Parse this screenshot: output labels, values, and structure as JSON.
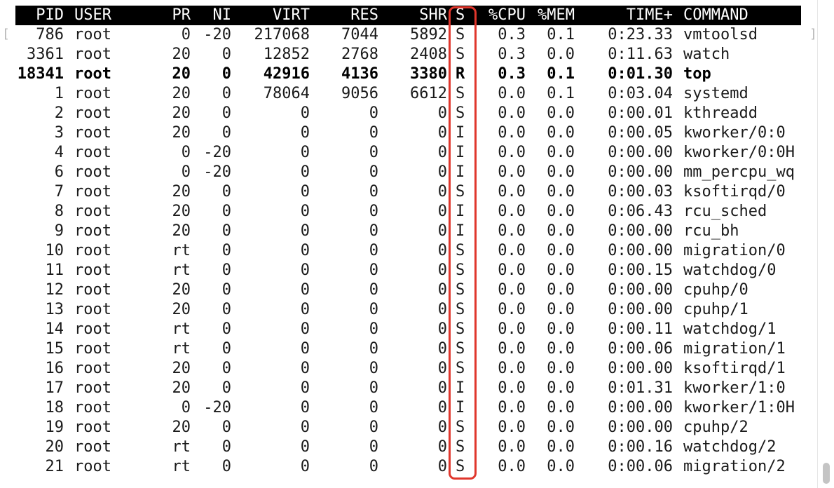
{
  "header": {
    "pid": "PID",
    "user": "USER",
    "pr": "PR",
    "ni": "NI",
    "virt": "VIRT",
    "res": "RES",
    "shr": "SHR",
    "s": "S",
    "cpu": "%CPU",
    "mem": "%MEM",
    "time": "TIME+",
    "command": "COMMAND"
  },
  "processes": [
    {
      "pid": "786",
      "user": "root",
      "pr": "0",
      "ni": "-20",
      "virt": "217068",
      "res": "7044",
      "shr": "5892",
      "s": "S",
      "cpu": "0.3",
      "mem": "0.1",
      "time": "0:23.33",
      "command": "vmtoolsd"
    },
    {
      "pid": "3361",
      "user": "root",
      "pr": "20",
      "ni": "0",
      "virt": "12852",
      "res": "2768",
      "shr": "2408",
      "s": "S",
      "cpu": "0.3",
      "mem": "0.0",
      "time": "0:11.63",
      "command": "watch"
    },
    {
      "pid": "18341",
      "user": "root",
      "pr": "20",
      "ni": "0",
      "virt": "42916",
      "res": "4136",
      "shr": "3380",
      "s": "R",
      "cpu": "0.3",
      "mem": "0.1",
      "time": "0:01.30",
      "command": "top"
    },
    {
      "pid": "1",
      "user": "root",
      "pr": "20",
      "ni": "0",
      "virt": "78064",
      "res": "9056",
      "shr": "6612",
      "s": "S",
      "cpu": "0.0",
      "mem": "0.1",
      "time": "0:03.04",
      "command": "systemd"
    },
    {
      "pid": "2",
      "user": "root",
      "pr": "20",
      "ni": "0",
      "virt": "0",
      "res": "0",
      "shr": "0",
      "s": "S",
      "cpu": "0.0",
      "mem": "0.0",
      "time": "0:00.01",
      "command": "kthreadd"
    },
    {
      "pid": "3",
      "user": "root",
      "pr": "20",
      "ni": "0",
      "virt": "0",
      "res": "0",
      "shr": "0",
      "s": "I",
      "cpu": "0.0",
      "mem": "0.0",
      "time": "0:00.05",
      "command": "kworker/0:0"
    },
    {
      "pid": "4",
      "user": "root",
      "pr": "0",
      "ni": "-20",
      "virt": "0",
      "res": "0",
      "shr": "0",
      "s": "I",
      "cpu": "0.0",
      "mem": "0.0",
      "time": "0:00.00",
      "command": "kworker/0:0H"
    },
    {
      "pid": "6",
      "user": "root",
      "pr": "0",
      "ni": "-20",
      "virt": "0",
      "res": "0",
      "shr": "0",
      "s": "I",
      "cpu": "0.0",
      "mem": "0.0",
      "time": "0:00.00",
      "command": "mm_percpu_wq"
    },
    {
      "pid": "7",
      "user": "root",
      "pr": "20",
      "ni": "0",
      "virt": "0",
      "res": "0",
      "shr": "0",
      "s": "S",
      "cpu": "0.0",
      "mem": "0.0",
      "time": "0:00.03",
      "command": "ksoftirqd/0"
    },
    {
      "pid": "8",
      "user": "root",
      "pr": "20",
      "ni": "0",
      "virt": "0",
      "res": "0",
      "shr": "0",
      "s": "I",
      "cpu": "0.0",
      "mem": "0.0",
      "time": "0:06.43",
      "command": "rcu_sched"
    },
    {
      "pid": "9",
      "user": "root",
      "pr": "20",
      "ni": "0",
      "virt": "0",
      "res": "0",
      "shr": "0",
      "s": "I",
      "cpu": "0.0",
      "mem": "0.0",
      "time": "0:00.00",
      "command": "rcu_bh"
    },
    {
      "pid": "10",
      "user": "root",
      "pr": "rt",
      "ni": "0",
      "virt": "0",
      "res": "0",
      "shr": "0",
      "s": "S",
      "cpu": "0.0",
      "mem": "0.0",
      "time": "0:00.00",
      "command": "migration/0"
    },
    {
      "pid": "11",
      "user": "root",
      "pr": "rt",
      "ni": "0",
      "virt": "0",
      "res": "0",
      "shr": "0",
      "s": "S",
      "cpu": "0.0",
      "mem": "0.0",
      "time": "0:00.15",
      "command": "watchdog/0"
    },
    {
      "pid": "12",
      "user": "root",
      "pr": "20",
      "ni": "0",
      "virt": "0",
      "res": "0",
      "shr": "0",
      "s": "S",
      "cpu": "0.0",
      "mem": "0.0",
      "time": "0:00.00",
      "command": "cpuhp/0"
    },
    {
      "pid": "13",
      "user": "root",
      "pr": "20",
      "ni": "0",
      "virt": "0",
      "res": "0",
      "shr": "0",
      "s": "S",
      "cpu": "0.0",
      "mem": "0.0",
      "time": "0:00.00",
      "command": "cpuhp/1"
    },
    {
      "pid": "14",
      "user": "root",
      "pr": "rt",
      "ni": "0",
      "virt": "0",
      "res": "0",
      "shr": "0",
      "s": "S",
      "cpu": "0.0",
      "mem": "0.0",
      "time": "0:00.11",
      "command": "watchdog/1"
    },
    {
      "pid": "15",
      "user": "root",
      "pr": "rt",
      "ni": "0",
      "virt": "0",
      "res": "0",
      "shr": "0",
      "s": "S",
      "cpu": "0.0",
      "mem": "0.0",
      "time": "0:00.06",
      "command": "migration/1"
    },
    {
      "pid": "16",
      "user": "root",
      "pr": "20",
      "ni": "0",
      "virt": "0",
      "res": "0",
      "shr": "0",
      "s": "S",
      "cpu": "0.0",
      "mem": "0.0",
      "time": "0:00.00",
      "command": "ksoftirqd/1"
    },
    {
      "pid": "17",
      "user": "root",
      "pr": "20",
      "ni": "0",
      "virt": "0",
      "res": "0",
      "shr": "0",
      "s": "I",
      "cpu": "0.0",
      "mem": "0.0",
      "time": "0:01.31",
      "command": "kworker/1:0"
    },
    {
      "pid": "18",
      "user": "root",
      "pr": "0",
      "ni": "-20",
      "virt": "0",
      "res": "0",
      "shr": "0",
      "s": "I",
      "cpu": "0.0",
      "mem": "0.0",
      "time": "0:00.00",
      "command": "kworker/1:0H"
    },
    {
      "pid": "19",
      "user": "root",
      "pr": "20",
      "ni": "0",
      "virt": "0",
      "res": "0",
      "shr": "0",
      "s": "S",
      "cpu": "0.0",
      "mem": "0.0",
      "time": "0:00.00",
      "command": "cpuhp/2"
    },
    {
      "pid": "20",
      "user": "root",
      "pr": "rt",
      "ni": "0",
      "virt": "0",
      "res": "0",
      "shr": "0",
      "s": "S",
      "cpu": "0.0",
      "mem": "0.0",
      "time": "0:00.16",
      "command": "watchdog/2"
    },
    {
      "pid": "21",
      "user": "root",
      "pr": "rt",
      "ni": "0",
      "virt": "0",
      "res": "0",
      "shr": "0",
      "s": "S",
      "cpu": "0.0",
      "mem": "0.0",
      "time": "0:00.06",
      "command": "migration/2"
    }
  ],
  "bold_row_pid": "18341",
  "brackets": {
    "left": "[",
    "right": "]"
  },
  "colors": {
    "header_bg": "#000000",
    "header_fg": "#ffffff",
    "highlight": "#e0362c",
    "text": "#1a1a1a"
  }
}
